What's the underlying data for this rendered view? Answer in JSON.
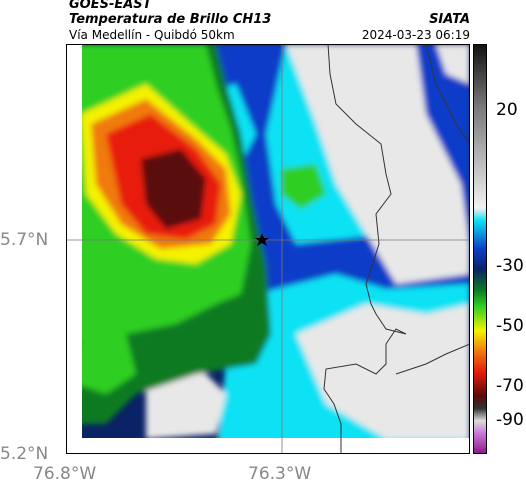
{
  "header": {
    "satellite": "GOES-EAST",
    "product": "Temperatura de Brillo CH13",
    "route": "Vía Medellín - Quibdó 50km",
    "agency": "SIATA",
    "timestamp": "2024-03-23 06:19"
  },
  "map": {
    "lat_labels": [
      "5.7°N",
      "5.2°N"
    ],
    "lon_labels": [
      "76.8°W",
      "76.3°W"
    ],
    "marker": "star-icon"
  },
  "colorbar": {
    "ticks": [
      "20",
      "-30",
      "-50",
      "-70",
      "-90"
    ],
    "colors": {
      "cold_top": "#3a1f2a",
      "red": "#e81c0c",
      "orange": "#f07a10",
      "yellow": "#f4f200",
      "green": "#2ecf22",
      "dark_green": "#0b7a22",
      "blue": "#0e3ec8",
      "navy": "#0a2266",
      "cyan": "#0ee2f4",
      "warm_gray": "#e8e8e8"
    }
  }
}
